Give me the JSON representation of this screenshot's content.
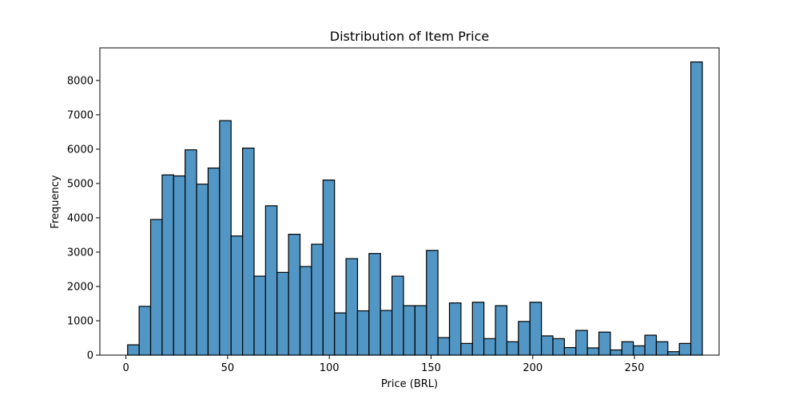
{
  "chart_data": {
    "type": "bar",
    "title": "Distribution of Item Price",
    "xlabel": "Price (BRL)",
    "ylabel": "Frequency",
    "xlim": [
      -12.8,
      291.6
    ],
    "ylim": [
      0,
      8950
    ],
    "xticks": [
      0,
      50,
      100,
      150,
      200,
      250
    ],
    "yticks": [
      0,
      1000,
      2000,
      3000,
      4000,
      5000,
      6000,
      7000,
      8000
    ],
    "bar_color": "#5196c4",
    "edge_color": "#000000",
    "grid": false,
    "legend": "none",
    "bin_width": 5.65,
    "bin_start": 0.85,
    "values": [
      300,
      1420,
      3950,
      5250,
      5220,
      5980,
      4980,
      5450,
      6830,
      3470,
      6030,
      2300,
      4350,
      2410,
      3520,
      2580,
      3230,
      5100,
      1230,
      2810,
      1290,
      2960,
      1300,
      2300,
      1440,
      1440,
      3050,
      510,
      1520,
      340,
      1540,
      480,
      1440,
      390,
      980,
      1540,
      560,
      480,
      220,
      720,
      210,
      670,
      150,
      390,
      270,
      580,
      390,
      100,
      340,
      8540
    ]
  }
}
